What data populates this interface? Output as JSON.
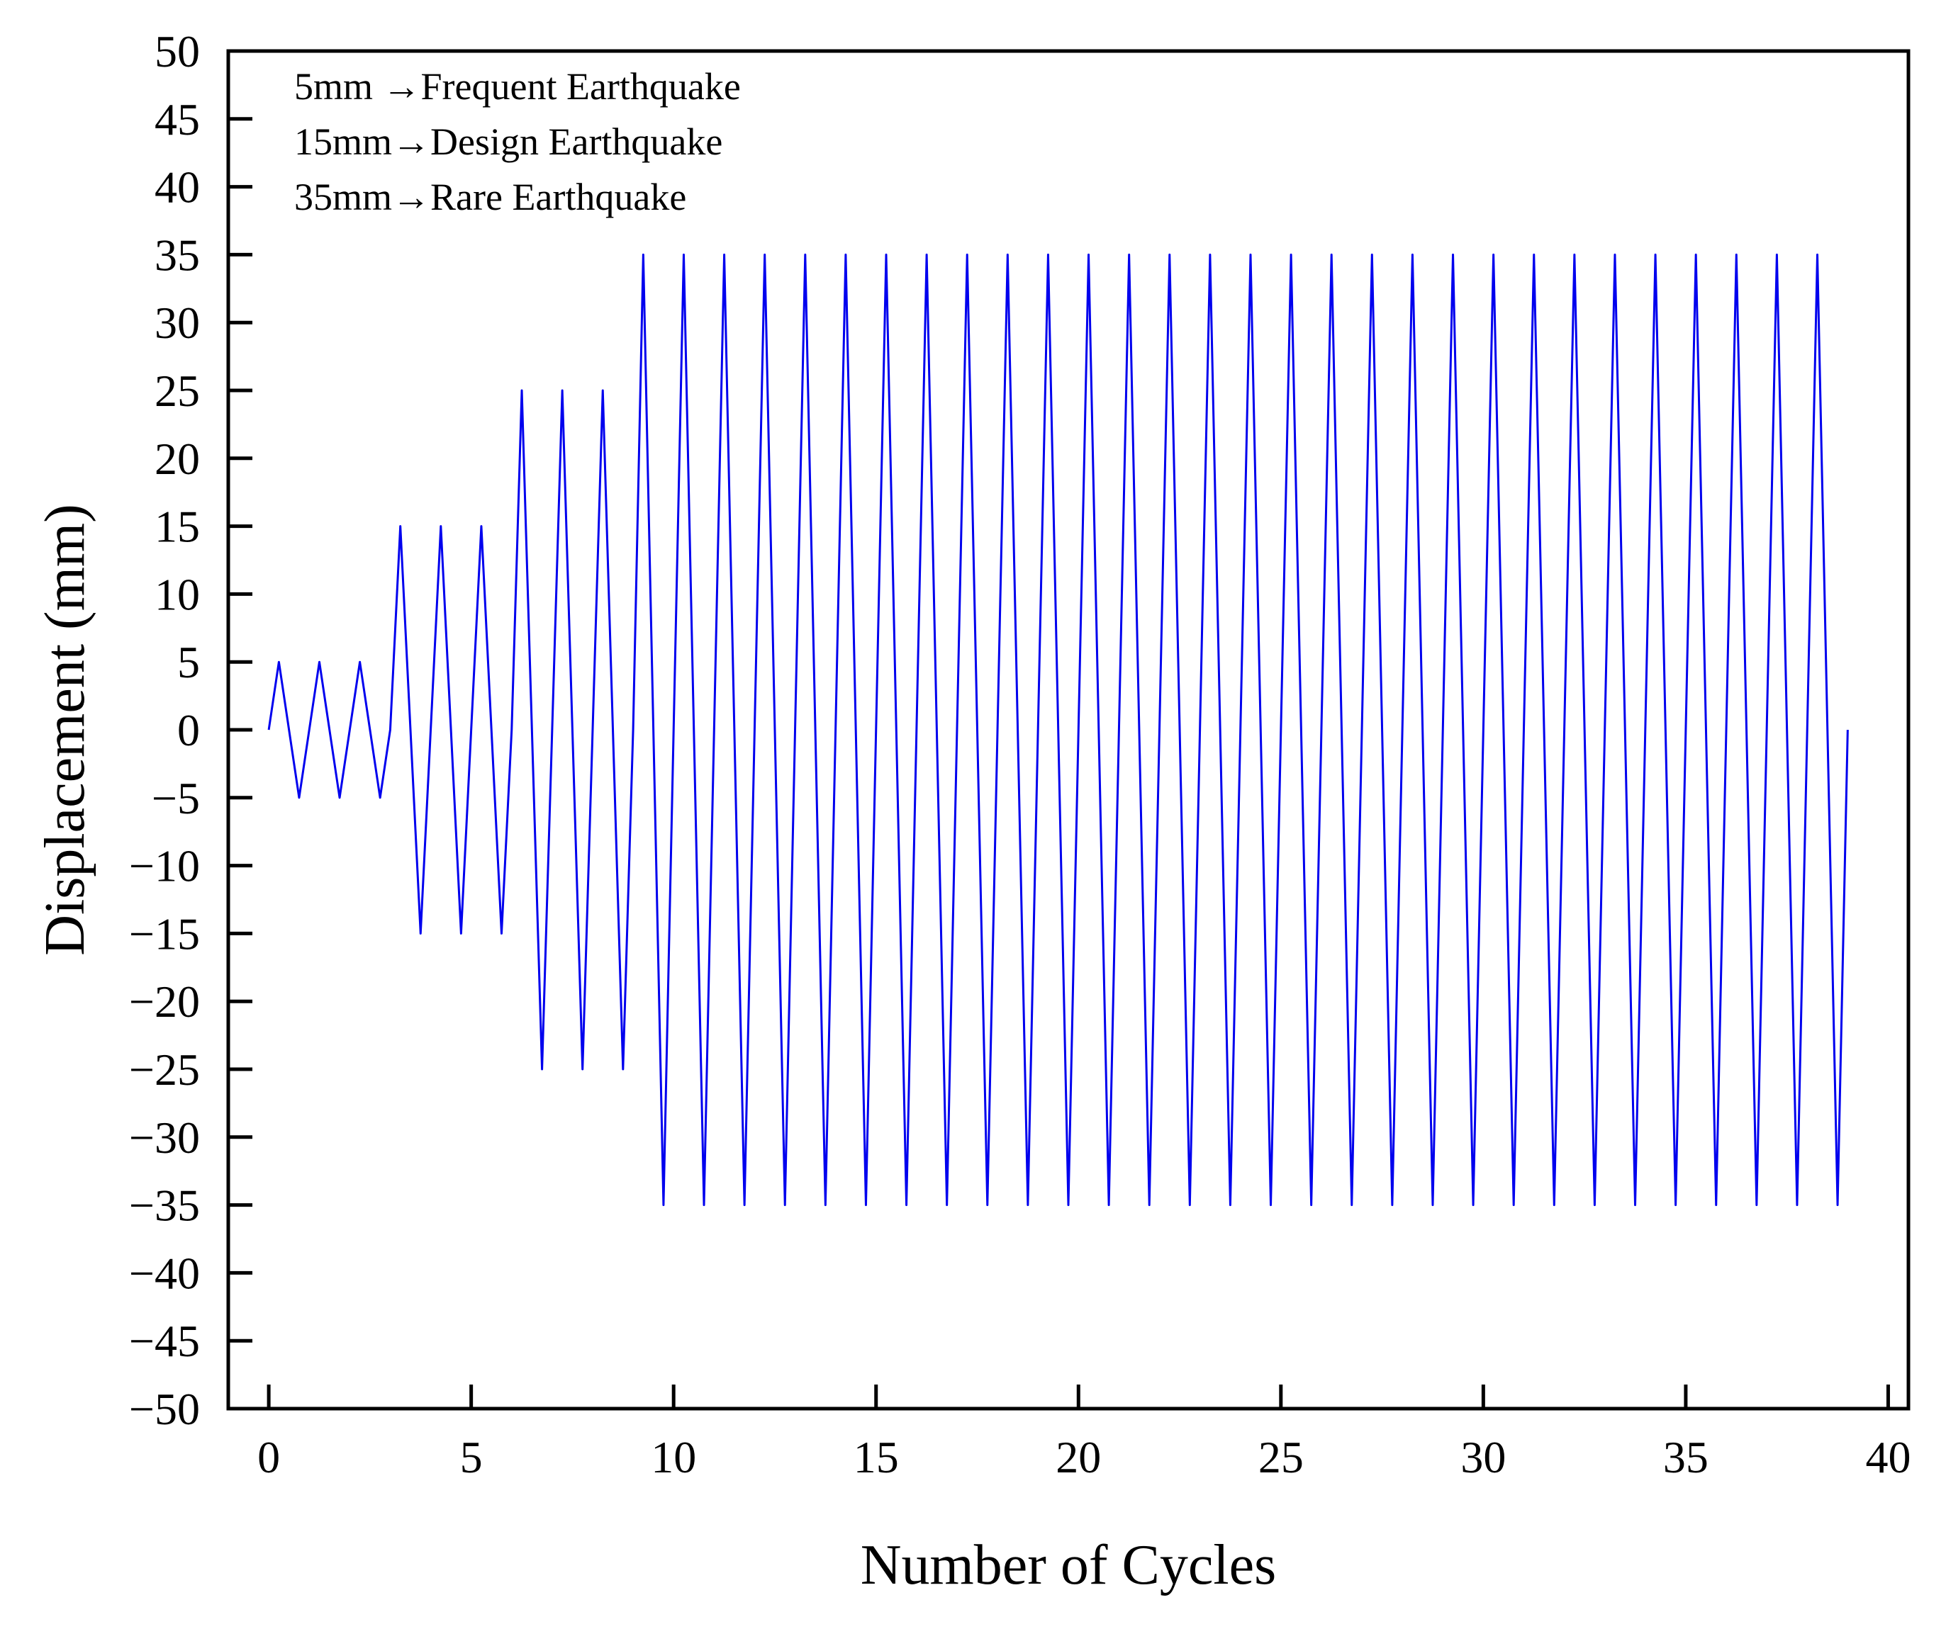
{
  "chart_data": {
    "type": "line",
    "title": "",
    "xlabel": "Number of Cycles",
    "ylabel": "Displacement (mm)",
    "xlim": [
      -1,
      40.5
    ],
    "ylim": [
      -50,
      50
    ],
    "xticks": [
      0,
      5,
      10,
      15,
      20,
      25,
      30,
      35,
      40
    ],
    "yticks": [
      50,
      45,
      40,
      35,
      30,
      25,
      20,
      15,
      10,
      5,
      0,
      -5,
      -10,
      -15,
      -20,
      -25,
      -30,
      -35,
      -40,
      -45,
      -50
    ],
    "ytick_labels": [
      "50",
      "45",
      "40",
      "35",
      "30",
      "25",
      "20",
      "15",
      "10",
      "5",
      "0",
      "−5",
      "−10",
      "−15",
      "−20",
      "−25",
      "−30",
      "−35",
      "−40",
      "−45",
      "−50"
    ],
    "grid": false,
    "line_color": "#0000ee",
    "annotations": [
      "5mm  →Frequent Earthquake",
      "15mm→Design Earthquake",
      "35mm→Rare Earthquake"
    ],
    "series": [
      {
        "name": "Displacement",
        "cycle_amplitudes": [
          5,
          5,
          5,
          15,
          15,
          15,
          25,
          25,
          25,
          35,
          35,
          35,
          35,
          35,
          35,
          35,
          35,
          35,
          35,
          35,
          35,
          35,
          35,
          35,
          35,
          35,
          35,
          35,
          35,
          35,
          35,
          35,
          35,
          35,
          35,
          35,
          35,
          35,
          35
        ],
        "cycle_period": 1,
        "shape": "triangular: 0 → +A at 0.25 → −A at 0.75 → 0 at 1.0 of each cycle"
      }
    ]
  }
}
